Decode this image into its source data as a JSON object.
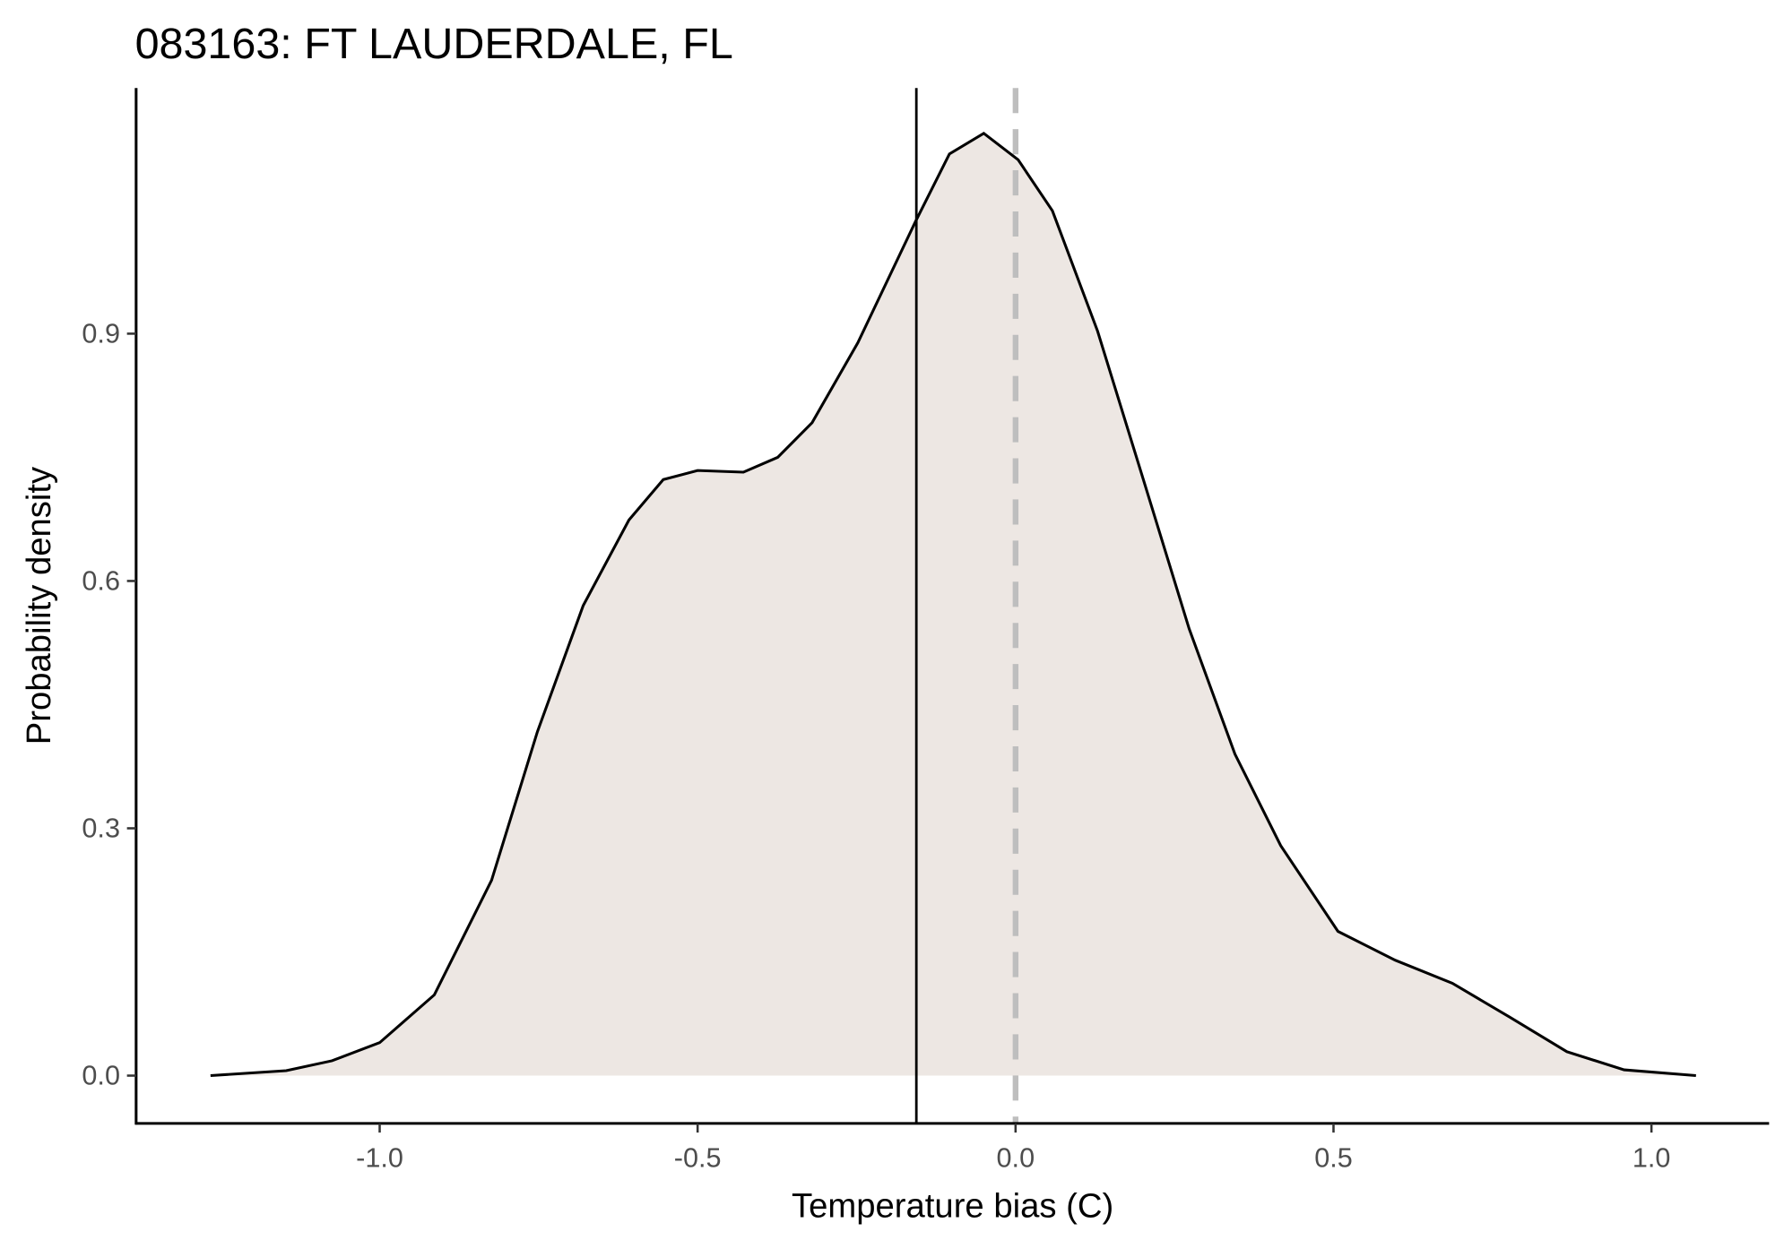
{
  "chart_data": {
    "type": "density",
    "title": "083163: FT LAUDERDALE, FL",
    "x_label": "Temperature bias (C)",
    "y_label": "Probability density",
    "x": [
      -1.266,
      -1.147,
      -1.075,
      -1.0,
      -0.914,
      -0.824,
      -0.752,
      -0.68,
      -0.608,
      -0.554,
      -0.5,
      -0.428,
      -0.374,
      -0.32,
      -0.248,
      -0.158,
      -0.104,
      -0.05,
      0.004,
      0.058,
      0.129,
      0.201,
      0.273,
      0.345,
      0.417,
      0.507,
      0.597,
      0.687,
      0.777,
      0.867,
      0.957,
      1.07
    ],
    "values": [
      0,
      0.006,
      0.018,
      0.04,
      0.098,
      0.237,
      0.417,
      0.57,
      0.674,
      0.723,
      0.734,
      0.732,
      0.75,
      0.792,
      0.889,
      1.035,
      1.118,
      1.143,
      1.111,
      1.049,
      0.903,
      0.723,
      0.542,
      0.39,
      0.279,
      0.175,
      0.14,
      0.112,
      0.071,
      0.029,
      0.007,
      0
    ],
    "fill_color": "#ede7e3",
    "color": "#000000",
    "vlines": [
      {
        "value": -0.156,
        "color": "#000000",
        "dashed": false
      },
      {
        "value": 0,
        "color": "#bebebe",
        "dashed": true
      }
    ],
    "xlim": [
      -1.383,
      1.185
    ],
    "ylim": [
      -0.058,
      1.198
    ],
    "xticks": [
      {
        "value": -1.0,
        "label": "-1.0"
      },
      {
        "value": -0.5,
        "label": "-0.5"
      },
      {
        "value": 0.0,
        "label": "0.0"
      },
      {
        "value": 0.5,
        "label": "0.5"
      },
      {
        "value": 1.0,
        "label": "1.0"
      }
    ],
    "yticks": [
      {
        "value": 0.0,
        "label": "0.0"
      },
      {
        "value": 0.3,
        "label": "0.3"
      },
      {
        "value": 0.6,
        "label": "0.6"
      },
      {
        "value": 0.9,
        "label": "0.9"
      }
    ],
    "grid": false
  }
}
